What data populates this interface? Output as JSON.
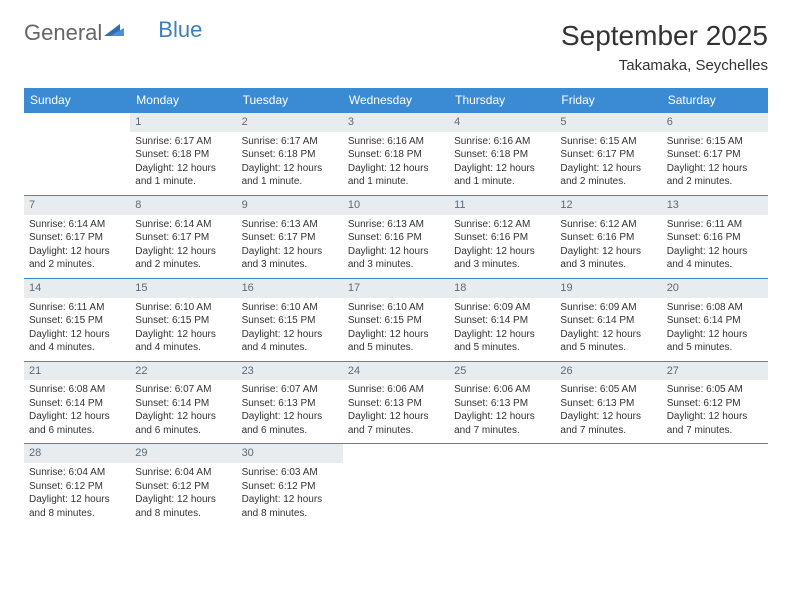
{
  "logo": {
    "general": "General",
    "blue": "Blue"
  },
  "header": {
    "month": "September 2025",
    "location": "Takamaka, Seychelles"
  },
  "colors": {
    "header_bg": "#3b8bd4",
    "header_text": "#ffffff",
    "daynum_bg": "#e9ecef",
    "daynum_text": "#5a6b78",
    "border": "#3b8bd4",
    "logo_blue": "#3b7fc4"
  },
  "weekdays": [
    "Sunday",
    "Monday",
    "Tuesday",
    "Wednesday",
    "Thursday",
    "Friday",
    "Saturday"
  ],
  "weeks": [
    [
      null,
      {
        "n": "1",
        "sr": "Sunrise: 6:17 AM",
        "ss": "Sunset: 6:18 PM",
        "d1": "Daylight: 12 hours",
        "d2": "and 1 minute."
      },
      {
        "n": "2",
        "sr": "Sunrise: 6:17 AM",
        "ss": "Sunset: 6:18 PM",
        "d1": "Daylight: 12 hours",
        "d2": "and 1 minute."
      },
      {
        "n": "3",
        "sr": "Sunrise: 6:16 AM",
        "ss": "Sunset: 6:18 PM",
        "d1": "Daylight: 12 hours",
        "d2": "and 1 minute."
      },
      {
        "n": "4",
        "sr": "Sunrise: 6:16 AM",
        "ss": "Sunset: 6:18 PM",
        "d1": "Daylight: 12 hours",
        "d2": "and 1 minute."
      },
      {
        "n": "5",
        "sr": "Sunrise: 6:15 AM",
        "ss": "Sunset: 6:17 PM",
        "d1": "Daylight: 12 hours",
        "d2": "and 2 minutes."
      },
      {
        "n": "6",
        "sr": "Sunrise: 6:15 AM",
        "ss": "Sunset: 6:17 PM",
        "d1": "Daylight: 12 hours",
        "d2": "and 2 minutes."
      }
    ],
    [
      {
        "n": "7",
        "sr": "Sunrise: 6:14 AM",
        "ss": "Sunset: 6:17 PM",
        "d1": "Daylight: 12 hours",
        "d2": "and 2 minutes."
      },
      {
        "n": "8",
        "sr": "Sunrise: 6:14 AM",
        "ss": "Sunset: 6:17 PM",
        "d1": "Daylight: 12 hours",
        "d2": "and 2 minutes."
      },
      {
        "n": "9",
        "sr": "Sunrise: 6:13 AM",
        "ss": "Sunset: 6:17 PM",
        "d1": "Daylight: 12 hours",
        "d2": "and 3 minutes."
      },
      {
        "n": "10",
        "sr": "Sunrise: 6:13 AM",
        "ss": "Sunset: 6:16 PM",
        "d1": "Daylight: 12 hours",
        "d2": "and 3 minutes."
      },
      {
        "n": "11",
        "sr": "Sunrise: 6:12 AM",
        "ss": "Sunset: 6:16 PM",
        "d1": "Daylight: 12 hours",
        "d2": "and 3 minutes."
      },
      {
        "n": "12",
        "sr": "Sunrise: 6:12 AM",
        "ss": "Sunset: 6:16 PM",
        "d1": "Daylight: 12 hours",
        "d2": "and 3 minutes."
      },
      {
        "n": "13",
        "sr": "Sunrise: 6:11 AM",
        "ss": "Sunset: 6:16 PM",
        "d1": "Daylight: 12 hours",
        "d2": "and 4 minutes."
      }
    ],
    [
      {
        "n": "14",
        "sr": "Sunrise: 6:11 AM",
        "ss": "Sunset: 6:15 PM",
        "d1": "Daylight: 12 hours",
        "d2": "and 4 minutes."
      },
      {
        "n": "15",
        "sr": "Sunrise: 6:10 AM",
        "ss": "Sunset: 6:15 PM",
        "d1": "Daylight: 12 hours",
        "d2": "and 4 minutes."
      },
      {
        "n": "16",
        "sr": "Sunrise: 6:10 AM",
        "ss": "Sunset: 6:15 PM",
        "d1": "Daylight: 12 hours",
        "d2": "and 4 minutes."
      },
      {
        "n": "17",
        "sr": "Sunrise: 6:10 AM",
        "ss": "Sunset: 6:15 PM",
        "d1": "Daylight: 12 hours",
        "d2": "and 5 minutes."
      },
      {
        "n": "18",
        "sr": "Sunrise: 6:09 AM",
        "ss": "Sunset: 6:14 PM",
        "d1": "Daylight: 12 hours",
        "d2": "and 5 minutes."
      },
      {
        "n": "19",
        "sr": "Sunrise: 6:09 AM",
        "ss": "Sunset: 6:14 PM",
        "d1": "Daylight: 12 hours",
        "d2": "and 5 minutes."
      },
      {
        "n": "20",
        "sr": "Sunrise: 6:08 AM",
        "ss": "Sunset: 6:14 PM",
        "d1": "Daylight: 12 hours",
        "d2": "and 5 minutes."
      }
    ],
    [
      {
        "n": "21",
        "sr": "Sunrise: 6:08 AM",
        "ss": "Sunset: 6:14 PM",
        "d1": "Daylight: 12 hours",
        "d2": "and 6 minutes."
      },
      {
        "n": "22",
        "sr": "Sunrise: 6:07 AM",
        "ss": "Sunset: 6:14 PM",
        "d1": "Daylight: 12 hours",
        "d2": "and 6 minutes."
      },
      {
        "n": "23",
        "sr": "Sunrise: 6:07 AM",
        "ss": "Sunset: 6:13 PM",
        "d1": "Daylight: 12 hours",
        "d2": "and 6 minutes."
      },
      {
        "n": "24",
        "sr": "Sunrise: 6:06 AM",
        "ss": "Sunset: 6:13 PM",
        "d1": "Daylight: 12 hours",
        "d2": "and 7 minutes."
      },
      {
        "n": "25",
        "sr": "Sunrise: 6:06 AM",
        "ss": "Sunset: 6:13 PM",
        "d1": "Daylight: 12 hours",
        "d2": "and 7 minutes."
      },
      {
        "n": "26",
        "sr": "Sunrise: 6:05 AM",
        "ss": "Sunset: 6:13 PM",
        "d1": "Daylight: 12 hours",
        "d2": "and 7 minutes."
      },
      {
        "n": "27",
        "sr": "Sunrise: 6:05 AM",
        "ss": "Sunset: 6:12 PM",
        "d1": "Daylight: 12 hours",
        "d2": "and 7 minutes."
      }
    ],
    [
      {
        "n": "28",
        "sr": "Sunrise: 6:04 AM",
        "ss": "Sunset: 6:12 PM",
        "d1": "Daylight: 12 hours",
        "d2": "and 8 minutes."
      },
      {
        "n": "29",
        "sr": "Sunrise: 6:04 AM",
        "ss": "Sunset: 6:12 PM",
        "d1": "Daylight: 12 hours",
        "d2": "and 8 minutes."
      },
      {
        "n": "30",
        "sr": "Sunrise: 6:03 AM",
        "ss": "Sunset: 6:12 PM",
        "d1": "Daylight: 12 hours",
        "d2": "and 8 minutes."
      },
      null,
      null,
      null,
      null
    ]
  ]
}
